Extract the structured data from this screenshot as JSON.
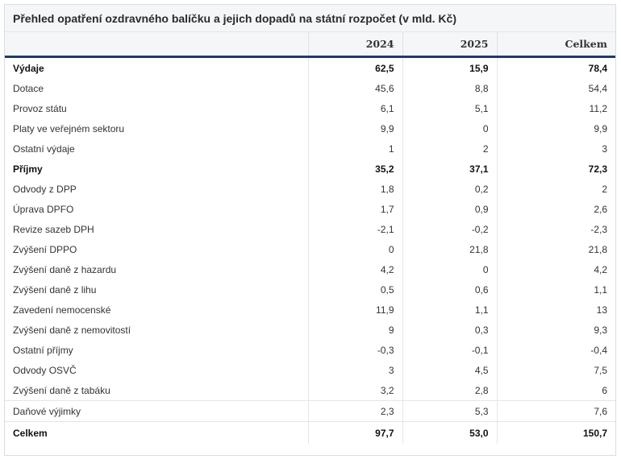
{
  "title": "Přehled opatření ozdravného balíčku a jejich dopadů na státní rozpočet (v mld. Kč)",
  "columns": [
    "",
    "2024",
    "2025",
    "Celkem"
  ],
  "rows": [
    {
      "label": "Výdaje",
      "v2024": "62,5",
      "v2025": "15,9",
      "total": "78,4"
    },
    {
      "label": "Dotace",
      "v2024": "45,6",
      "v2025": "8,8",
      "total": "54,4"
    },
    {
      "label": "Provoz státu",
      "v2024": "6,1",
      "v2025": "5,1",
      "total": "11,2"
    },
    {
      "label": "Platy ve veřejném sektoru",
      "v2024": "9,9",
      "v2025": "0",
      "total": "9,9"
    },
    {
      "label": "Ostatní výdaje",
      "v2024": "1",
      "v2025": "2",
      "total": "3"
    },
    {
      "label": "Příjmy",
      "v2024": "35,2",
      "v2025": "37,1",
      "total": "72,3"
    },
    {
      "label": "Odvody z DPP",
      "v2024": "1,8",
      "v2025": "0,2",
      "total": "2"
    },
    {
      "label": "Úprava DPFO",
      "v2024": "1,7",
      "v2025": "0,9",
      "total": "2,6"
    },
    {
      "label": "Revize sazeb DPH",
      "v2024": "-2,1",
      "v2025": "-0,2",
      "total": "-2,3"
    },
    {
      "label": "Zvýšení DPPO",
      "v2024": "0",
      "v2025": "21,8",
      "total": "21,8"
    },
    {
      "label": "Zvýšení daně z hazardu",
      "v2024": "4,2",
      "v2025": "0",
      "total": "4,2"
    },
    {
      "label": "Zvýšení daně z lihu",
      "v2024": "0,5",
      "v2025": "0,6",
      "total": "1,1"
    },
    {
      "label": "Zavedení nemocenské",
      "v2024": "11,9",
      "v2025": "1,1",
      "total": "13"
    },
    {
      "label": "Zvýšení daně z nemovitostí",
      "v2024": "9",
      "v2025": "0,3",
      "total": "9,3"
    },
    {
      "label": "Ostatní příjmy",
      "v2024": "-0,3",
      "v2025": "-0,1",
      "total": "-0,4"
    },
    {
      "label": "Odvody OSVČ",
      "v2024": "3",
      "v2025": "4,5",
      "total": "7,5"
    },
    {
      "label": "Zvýšení daně z tabáku",
      "v2024": "3,2",
      "v2025": "2,8",
      "total": "6"
    },
    {
      "label": "Daňové výjimky",
      "v2024": "2,3",
      "v2025": "5,3",
      "total": "7,6"
    },
    {
      "label": "Celkem",
      "v2024": "97,7",
      "v2025": "53,0",
      "total": "150,7"
    }
  ]
}
